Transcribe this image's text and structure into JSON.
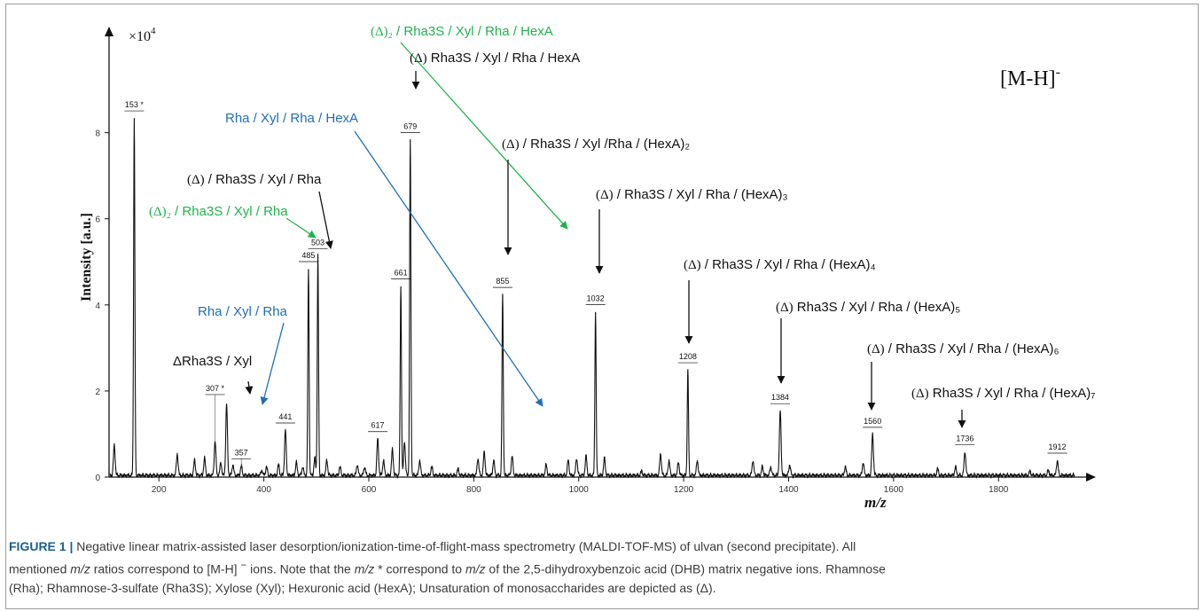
{
  "chart_data": {
    "type": "line",
    "xlabel": "m/z",
    "ylabel": "Intensity [a.u.]",
    "y_multiplier": "×10",
    "y_multiplier_exp": "4",
    "xlim": [
      105,
      1955
    ],
    "ylim": [
      0,
      10.3
    ],
    "x_ticks": [
      200,
      400,
      600,
      800,
      1000,
      1200,
      1400,
      1600,
      1800
    ],
    "x_tick_labels": [
      "200",
      "400",
      "600",
      "800",
      "1000",
      "1200",
      "1400",
      "1600",
      "1800"
    ],
    "y_ticks": [
      0,
      2,
      4,
      6,
      8
    ],
    "y_tick_labels": [
      "0",
      "2",
      "4",
      "6",
      "8"
    ],
    "ion_type": "[M-H]",
    "ion_type_sup": "-",
    "peaks": [
      {
        "mz": 115,
        "y": 0.7
      },
      {
        "mz": 153,
        "y": 8.3,
        "label": "153 *"
      },
      {
        "mz": 235,
        "y": 0.5
      },
      {
        "mz": 268,
        "y": 0.35
      },
      {
        "mz": 287,
        "y": 0.4
      },
      {
        "mz": 307,
        "y": 0.8,
        "label": "307 *"
      },
      {
        "mz": 318,
        "y": 0.3
      },
      {
        "mz": 329,
        "y": 1.65
      },
      {
        "mz": 341,
        "y": 0.25
      },
      {
        "mz": 357,
        "y": 0.22,
        "label": "357"
      },
      {
        "mz": 396,
        "y": 0.12
      },
      {
        "mz": 405,
        "y": 0.2
      },
      {
        "mz": 428,
        "y": 0.25
      },
      {
        "mz": 441,
        "y": 1.05,
        "label": "441"
      },
      {
        "mz": 462,
        "y": 0.3
      },
      {
        "mz": 474,
        "y": 0.2
      },
      {
        "mz": 485,
        "y": 4.8,
        "label": "485"
      },
      {
        "mz": 497,
        "y": 0.4
      },
      {
        "mz": 503,
        "y": 5.1,
        "label": "503"
      },
      {
        "mz": 520,
        "y": 0.35
      },
      {
        "mz": 545,
        "y": 0.2
      },
      {
        "mz": 578,
        "y": 0.25
      },
      {
        "mz": 592,
        "y": 0.2
      },
      {
        "mz": 617,
        "y": 0.85,
        "label": "617"
      },
      {
        "mz": 628,
        "y": 0.35
      },
      {
        "mz": 645,
        "y": 0.6
      },
      {
        "mz": 661,
        "y": 4.4,
        "label": "661"
      },
      {
        "mz": 668,
        "y": 0.8
      },
      {
        "mz": 679,
        "y": 7.8,
        "label": "679"
      },
      {
        "mz": 697,
        "y": 0.35
      },
      {
        "mz": 720,
        "y": 0.2
      },
      {
        "mz": 770,
        "y": 0.15
      },
      {
        "mz": 808,
        "y": 0.4
      },
      {
        "mz": 820,
        "y": 0.55
      },
      {
        "mz": 838,
        "y": 0.35
      },
      {
        "mz": 855,
        "y": 4.2,
        "label": "855"
      },
      {
        "mz": 873,
        "y": 0.45
      },
      {
        "mz": 938,
        "y": 0.25
      },
      {
        "mz": 980,
        "y": 0.35
      },
      {
        "mz": 996,
        "y": 0.4
      },
      {
        "mz": 1014,
        "y": 0.45
      },
      {
        "mz": 1032,
        "y": 3.8,
        "label": "1032"
      },
      {
        "mz": 1049,
        "y": 0.4
      },
      {
        "mz": 1120,
        "y": 0.1
      },
      {
        "mz": 1156,
        "y": 0.5
      },
      {
        "mz": 1172,
        "y": 0.35
      },
      {
        "mz": 1190,
        "y": 0.3
      },
      {
        "mz": 1208,
        "y": 2.45,
        "label": "1208"
      },
      {
        "mz": 1226,
        "y": 0.35
      },
      {
        "mz": 1332,
        "y": 0.35
      },
      {
        "mz": 1350,
        "y": 0.2
      },
      {
        "mz": 1366,
        "y": 0.2
      },
      {
        "mz": 1384,
        "y": 1.5,
        "label": "1384"
      },
      {
        "mz": 1402,
        "y": 0.25
      },
      {
        "mz": 1508,
        "y": 0.2
      },
      {
        "mz": 1542,
        "y": 0.3
      },
      {
        "mz": 1560,
        "y": 0.95,
        "label": "1560"
      },
      {
        "mz": 1684,
        "y": 0.15
      },
      {
        "mz": 1718,
        "y": 0.2
      },
      {
        "mz": 1736,
        "y": 0.55,
        "label": "1736"
      },
      {
        "mz": 1860,
        "y": 0.1
      },
      {
        "mz": 1895,
        "y": 0.12
      },
      {
        "mz": 1912,
        "y": 0.35,
        "label": "1912"
      }
    ],
    "annotations": [
      {
        "segments": [
          {
            "t": "(Δ)",
            "serif": true
          },
          {
            "t": "₂",
            "serif": true
          },
          {
            "t": " / Rha3S / Xyl / Rha / HexA"
          }
        ],
        "color": "#21b24b",
        "target_mz": 640
      },
      {
        "segments": [
          {
            "t": "(Δ)",
            "serif": true
          },
          {
            "t": " Rha3S / Xyl / Rha / HexA"
          }
        ],
        "color": "#111111",
        "target_mz": 679
      },
      {
        "segments": [
          {
            "t": "Rha / Xyl / Rha / HexA"
          }
        ],
        "color": "#1f6fb5",
        "target_mz": 617
      },
      {
        "segments": [
          {
            "t": "(Δ)",
            "serif": true
          },
          {
            "t": " / Rha3S / Xyl /Rha / (HexA)"
          },
          {
            "t": "₂"
          }
        ],
        "color": "#111111",
        "target_mz": 855
      },
      {
        "segments": [
          {
            "t": "(Δ)",
            "serif": true
          },
          {
            "t": " / Rha3S / Xyl / Rha"
          }
        ],
        "color": "#111111",
        "target_mz": 503
      },
      {
        "segments": [
          {
            "t": "(Δ)",
            "serif": true
          },
          {
            "t": " / Rha3S / Xyl / Rha / (HexA)"
          },
          {
            "t": "₃"
          }
        ],
        "color": "#111111",
        "target_mz": 1032
      },
      {
        "segments": [
          {
            "t": "(Δ)",
            "serif": true
          },
          {
            "t": "₂",
            "serif": true
          },
          {
            "t": " / Rha3S / Xyl / Rha"
          }
        ],
        "color": "#21b24b",
        "target_mz": 485
      },
      {
        "segments": [
          {
            "t": "(Δ)",
            "serif": true
          },
          {
            "t": " / Rha3S / Xyl / Rha / (HexA)"
          },
          {
            "t": "₄"
          }
        ],
        "color": "#111111",
        "target_mz": 1208
      },
      {
        "segments": [
          {
            "t": "Rha / Xyl / Rha"
          }
        ],
        "color": "#1f6fb5",
        "target_mz": 441
      },
      {
        "segments": [
          {
            "t": "(Δ)",
            "serif": true
          },
          {
            "t": " Rha3S / Xyl / Rha / (HexA)"
          },
          {
            "t": "₅"
          }
        ],
        "color": "#111111",
        "target_mz": 1384
      },
      {
        "segments": [
          {
            "t": "ΔRha3S / Xyl"
          }
        ],
        "color": "#111111",
        "target_mz": 329
      },
      {
        "segments": [
          {
            "t": "(Δ)",
            "serif": true
          },
          {
            "t": " / Rha3S / Xyl / Rha / (HexA)"
          },
          {
            "t": "₆"
          }
        ],
        "color": "#111111",
        "target_mz": 1560
      },
      {
        "segments": [
          {
            "t": "(Δ)",
            "serif": true
          },
          {
            "t": " Rha3S / Xyl / Rha / (HexA)"
          },
          {
            "t": "₇"
          }
        ],
        "color": "#111111",
        "target_mz": 1736
      }
    ]
  },
  "caption": {
    "label": "FIGURE 1 |",
    "line1": " Negative linear matrix-assisted laser desorption/ionization-time-of-flight-mass spectrometry (MALDI-TOF-MS) of ulvan (second precipitate). All",
    "line2a": "mentioned ",
    "mz1": "m/z",
    "line2b": " ratios correspond to [M-H] ",
    "minus": "−",
    "line2c": " ions. Note that the ",
    "mz2": "m/z",
    "line2d": " * correspond to ",
    "mz3": "m/z",
    "line2e": " of the 2,5-dihydroxybenzoic acid (DHB) matrix negative ions. Rhamnose",
    "line3": "(Rha); Rhamnose-3-sulfate (Rha3S); Xylose (Xyl); Hexuronic acid (HexA); Unsaturation of monosaccharides are depicted as (Δ)."
  }
}
